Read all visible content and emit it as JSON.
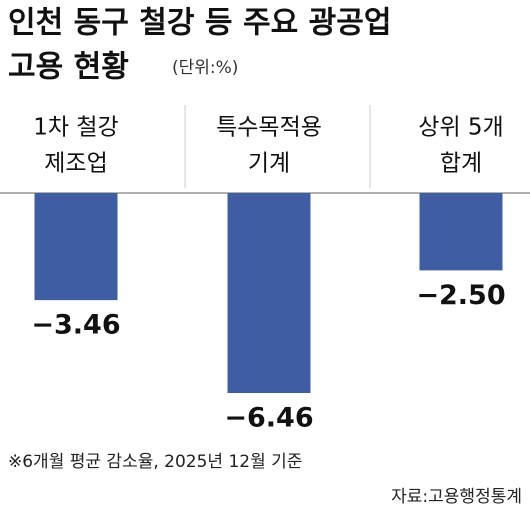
{
  "chart_data": {
    "type": "bar",
    "title_lines": [
      "인천 동구 철강 등 주요 광공업",
      "고용 현황"
    ],
    "unit": "(단위:%)",
    "categories": [
      [
        "1차 철강",
        "제조업"
      ],
      [
        "특수목적용",
        "기계"
      ],
      [
        "상위 5개",
        "합계"
      ]
    ],
    "values": [
      -3.46,
      -6.46,
      -2.5
    ],
    "value_labels": [
      "−3.46",
      "−6.46",
      "−2.50"
    ],
    "color": "#3e5da3",
    "footnote": "※6개월 평균 감소율, 2025년 12월 기준",
    "source": "자료:고용행정통계"
  }
}
